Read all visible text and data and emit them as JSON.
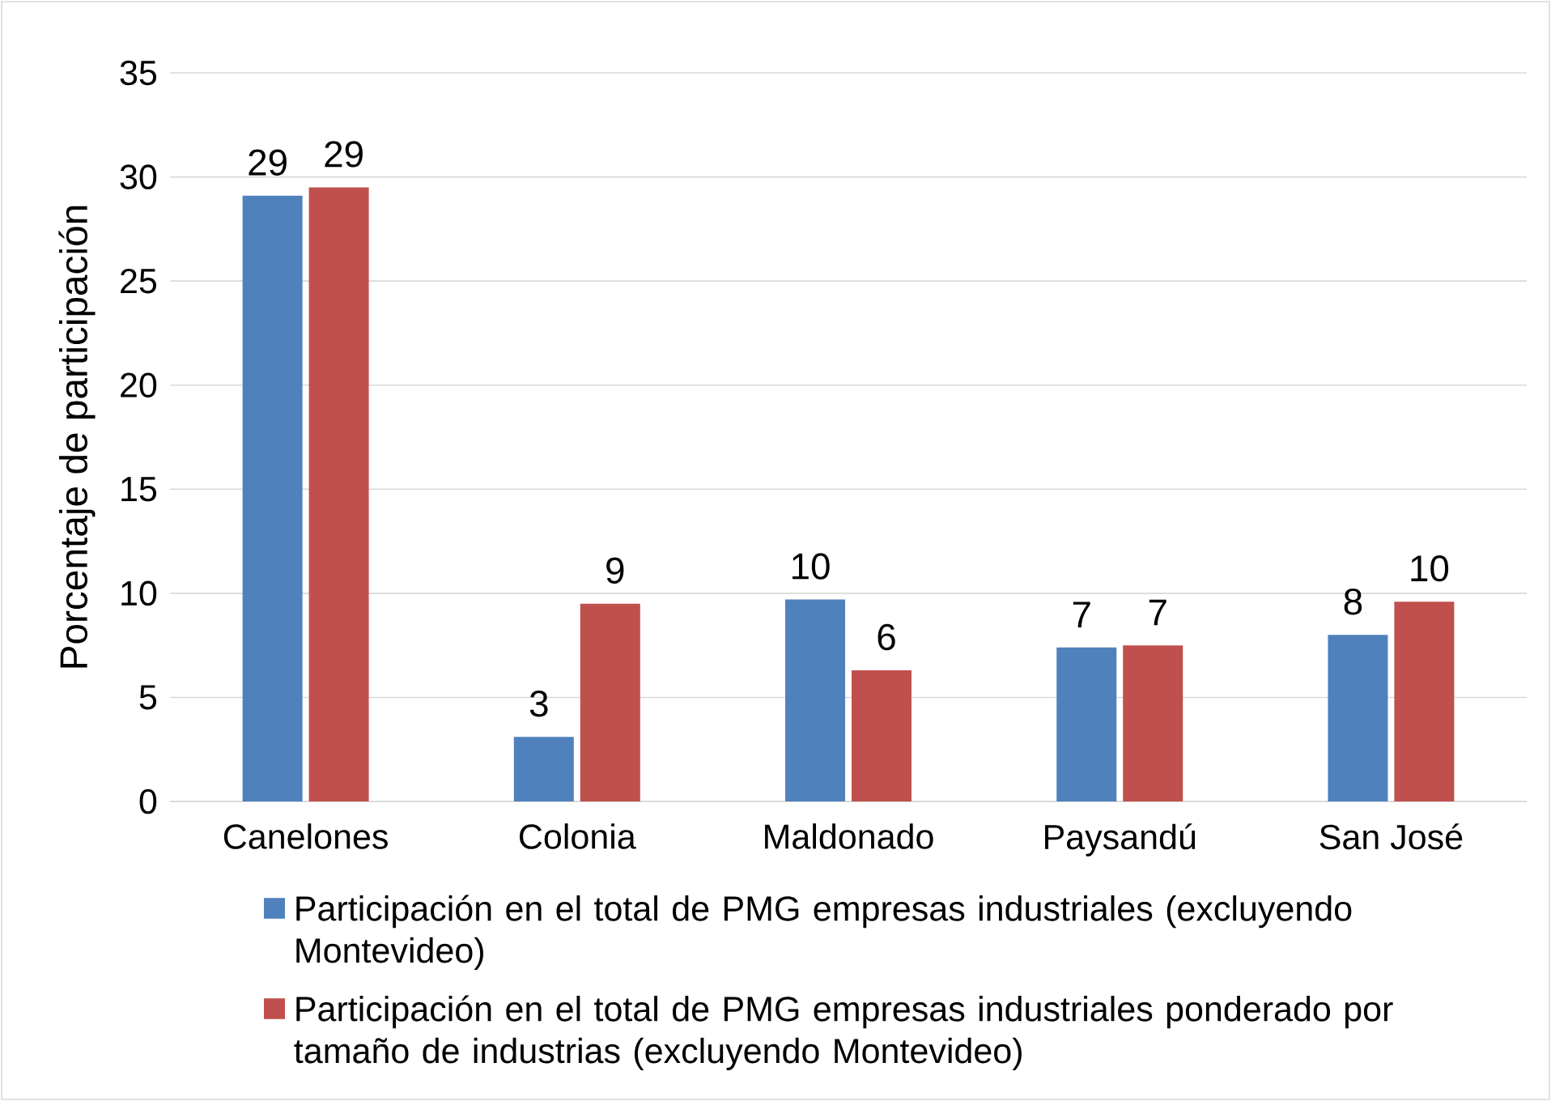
{
  "chart_data": {
    "type": "bar",
    "ylabel": "Porcentaje de participación",
    "categories": [
      "Canelones",
      "Colonia",
      "Maldonado",
      "Paysandú",
      "San José"
    ],
    "series": [
      {
        "name": "Participación en el total de PMG empresas industriales (excluyendo Montevideo)",
        "color": "#4f81bd",
        "values": [
          29.1,
          3.1,
          9.7,
          7.4,
          8.0
        ],
        "value_labels": [
          "29",
          "3",
          "10",
          "7",
          "8"
        ]
      },
      {
        "name": "Participación en el total de PMG empresas industriales ponderado por tamaño de industrias (excluyendo Montevideo)",
        "color": "#c0504d",
        "values": [
          29.5,
          9.5,
          6.3,
          7.5,
          9.6
        ],
        "value_labels": [
          "29",
          "9",
          "6",
          "7",
          "10"
        ]
      }
    ],
    "ylim": [
      0,
      35
    ],
    "yticks": [
      0,
      5,
      10,
      15,
      20,
      25,
      30,
      35
    ],
    "grid": "y",
    "legend": "bottom"
  }
}
